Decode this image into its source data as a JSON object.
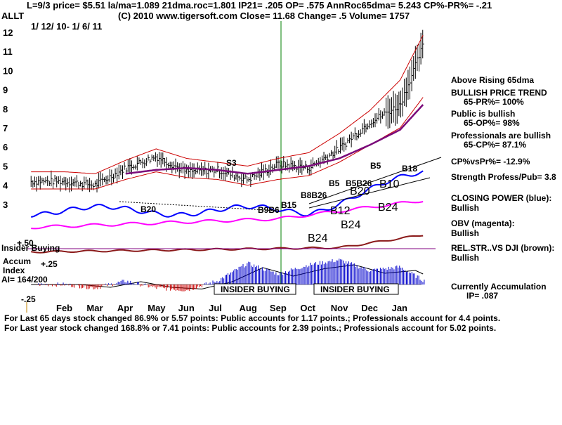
{
  "header": {
    "line1": "L=9/3  price= $5.51  la/ma=1.089 21dma.roc=1.801 IP21= .205 OP= .575 AnnRoc65dma= 5.243 CP%-PR%= -.21",
    "ticker": "ALLT",
    "line2": "(C) 2010 www.tigersoft.com    Close=  11.68  Change= .5 Volume= 1757",
    "date_range": "1/ 12/ 10-  1/ 6/ 11"
  },
  "right_panel": [
    "Above Rising 65dma",
    "BULLISH PRICE TREND",
    "65-PR%= 100%",
    "Public is bullish",
    "65-OP%= 98%",
    "Professionals are bullish",
    "65-CP%= 87.1%",
    "CP%vsPr%= -12.9%",
    "Strength Profess/Pub= 3.8",
    "CLOSING POWER (blue):",
    "Bullish",
    "OBV (magenta):",
    "Bullish",
    "REL.STR..VS DJI (brown):",
    "Bullish",
    "Currently Accumulation",
    "IP=  .087"
  ],
  "panel_labels": {
    "insider": "Insider Buying",
    "accum": [
      "Accum",
      "Index",
      "AI= 164/200"
    ],
    "plus50": "+.50",
    "plus25": "+.25",
    "minus25": "-.25",
    "box1": "INSIDER BUYING",
    "box2": "INSIDER BUYING"
  },
  "signals": {
    "s3": "S3",
    "b20a": "B20",
    "bbb": "B9B6",
    "b15": "B15",
    "b8b26": "B8B26",
    "b5a": "B5",
    "b5b": "B5",
    "b5c": "B5B26",
    "b20b": "B20",
    "b18": "B18",
    "b10": "B10",
    "b12": "B12",
    "b24a": "B24",
    "b24b": "B24",
    "b24c": "B24"
  },
  "footer": {
    "line1": "For Last 65 days stock changed  86.9% or  5.57 points:  Public accounts for  1.17 points.;  Professionals account for  4.4 points.",
    "line2": "For Last year stock changed  168.8% or  7.41 points:  Public accounts for  2.39 points.;  Professionals account for  5.02 points."
  },
  "colors": {
    "price": "#000000",
    "ma_red": "#cc0000",
    "ma65": "#7a0a7a",
    "closing_power": "#0000ff",
    "obv": "#ff00ff",
    "rel_strength": "#8b1a1a",
    "accum_bar": "#0000cc",
    "dist_bar": "#cc0000",
    "marker": "#008000"
  },
  "chart_data": {
    "type": "line",
    "title": "ALLT",
    "xlabel": "",
    "ylabel": "",
    "ylim": [
      2.5,
      12.5
    ],
    "y_ticks": [
      "12",
      "11",
      "10",
      "9",
      "8",
      "7",
      "6",
      "5",
      "4",
      "3"
    ],
    "x_ticks": [
      "Feb",
      "Mar",
      "Apr",
      "May",
      "Jun",
      "Jul",
      "Aug",
      "Sep",
      "Oct",
      "Nov",
      "Dec",
      "Jan"
    ],
    "months_index": [
      0,
      1,
      2,
      3,
      4,
      5,
      6,
      7,
      8,
      9,
      10,
      11,
      11.8
    ],
    "price_close": [
      4.2,
      4.0,
      4.9,
      5.5,
      4.7,
      4.8,
      4.3,
      5.1,
      4.9,
      5.9,
      7.3,
      8.2,
      11.5
    ],
    "upper_band": [
      4.7,
      4.6,
      5.3,
      5.9,
      5.4,
      5.2,
      5.0,
      5.4,
      5.7,
      6.7,
      7.9,
      9.5,
      12.0
    ],
    "lower_band": [
      3.8,
      3.8,
      4.3,
      4.7,
      4.4,
      4.3,
      4.0,
      4.3,
      4.5,
      5.2,
      6.1,
      7.0,
      8.7
    ],
    "ma65": [
      null,
      null,
      4.6,
      4.8,
      4.9,
      4.8,
      4.6,
      4.8,
      5.0,
      5.4,
      6.1,
      6.9,
      8.3
    ],
    "closing_power_shown": "blue",
    "obv_shown": "magenta",
    "rel_strength_shown": "brown",
    "ai_range": [
      -0.25,
      0.5
    ],
    "ai_values": [
      0.0,
      -0.05,
      0.05,
      -0.05,
      -0.08,
      0.05,
      0.3,
      0.15,
      0.28,
      0.35,
      0.2,
      0.25,
      0.05
    ]
  }
}
